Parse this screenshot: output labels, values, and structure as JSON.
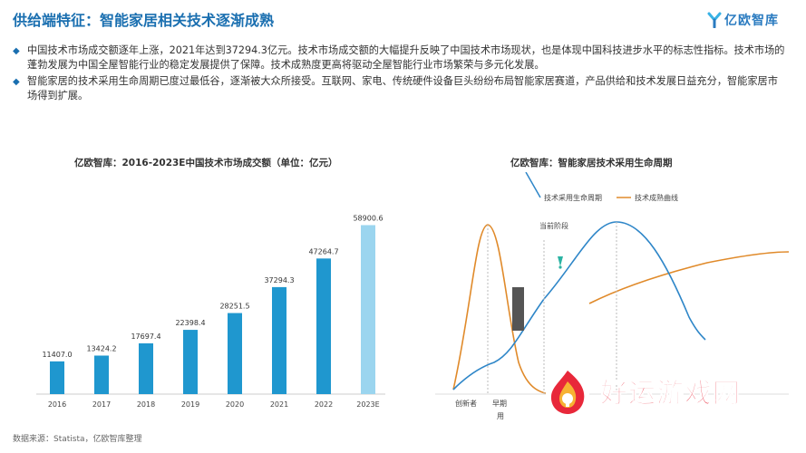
{
  "header": {
    "title": "供给端特征：智能家居相关技术逐渐成熟",
    "logo_text": "亿欧智库",
    "logo_icon": "ye-logo-icon",
    "accent": "#1a6fb0"
  },
  "bullets": [
    "中国技术市场成交额逐年上涨，2021年达到37294.3亿元。技术市场成交额的大幅提升反映了中国技术市场现状，也是体现中国科技进步水平的标志性指标。技术市场的蓬勃发展为中国全屋智能行业的稳定发展提供了保障。技术成熟度更高将驱动全屋智能行业市场繁荣与多元化发展。",
    "智能家居的技术采用生命周期已度过最低谷，逐渐被大众所接受。互联网、家电、传统硬件设备巨头纷纷布局智能家居赛道，产品供给和技术发展日益充分，智能家居市场得到扩展。"
  ],
  "chart_data": [
    {
      "type": "bar",
      "title": "亿欧智库：2016-2023E中国技术市场成交额（单位：亿元）",
      "categories": [
        "2016",
        "2017",
        "2018",
        "2019",
        "2020",
        "2021",
        "2022",
        "2023E"
      ],
      "values": [
        11407.0,
        13424.2,
        17697.4,
        22398.4,
        28251.5,
        37294.3,
        47264.7,
        58900.6
      ],
      "value_labels": [
        "11407.0",
        "13424.2",
        "17697.4",
        "22398.4",
        "28251.5",
        "37294.3",
        "47264.7",
        "58900.6"
      ],
      "ylim": [
        0,
        60000
      ],
      "colors": [
        "#1f97cf",
        "#1f97cf",
        "#1f97cf",
        "#1f97cf",
        "#1f97cf",
        "#1f97cf",
        "#1f97cf",
        "#9bd5ef"
      ],
      "grid": false
    },
    {
      "type": "line",
      "title": "亿欧智库：智能家居技术采用生命周期",
      "legend_placement": "top",
      "series": [
        {
          "name": "技术采用生命周期",
          "color": "#2e86c8"
        },
        {
          "name": "技术成熟曲线",
          "color": "#e08a2a"
        }
      ],
      "annotation": "当前阶段",
      "x_ticks": [
        "创新者",
        "早期"
      ],
      "xlabel": "用"
    }
  ],
  "footer": {
    "source": "数据来源：Statista，亿欧智库整理"
  },
  "watermark": {
    "text": "好运游戏网",
    "icon": "fire-logo-icon",
    "color": "#e8283a"
  }
}
